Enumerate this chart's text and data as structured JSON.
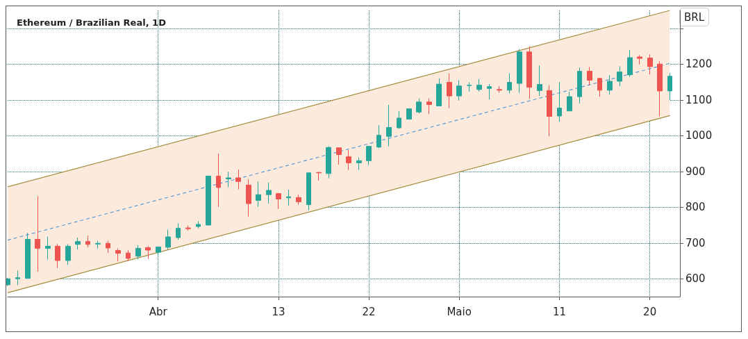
{
  "chart_data": {
    "type": "candlestick",
    "title": "Ethereum / Brazilian Real, 1D",
    "ylabel": "BRL",
    "x": [
      "--03-17",
      "--03-18",
      "--03-19",
      "--03-20",
      "--03-21",
      "--03-22",
      "--03-23",
      "--03-24",
      "--03-25",
      "--03-26",
      "--03-27",
      "--03-28",
      "--03-29",
      "--03-30",
      "--03-31",
      "--04-01",
      "--04-02",
      "--04-03",
      "--04-04",
      "--04-05",
      "--04-06",
      "--04-07",
      "--04-08",
      "--04-09",
      "--04-10",
      "--04-11",
      "--04-12",
      "--04-13",
      "--04-14",
      "--04-15",
      "--04-16",
      "--04-17",
      "--04-18",
      "--04-19",
      "--04-20",
      "--04-21",
      "--04-22",
      "--04-23",
      "--04-24",
      "--04-25",
      "--04-26",
      "--04-27",
      "--04-28",
      "--04-29",
      "--04-30",
      "--05-01",
      "--05-02",
      "--05-03",
      "--05-04",
      "--05-05",
      "--05-06",
      "--05-07",
      "--05-08",
      "--05-09",
      "--05-10",
      "--05-11",
      "--05-12",
      "--05-13",
      "--05-14",
      "--05-15",
      "--05-16",
      "--05-17",
      "--05-18",
      "--05-19",
      "--05-20",
      "--05-21",
      "--05-22"
    ],
    "ohlc": [
      [
        583,
        602,
        580,
        600
      ],
      [
        600,
        623,
        582,
        603
      ],
      [
        601,
        728,
        600,
        710
      ],
      [
        710,
        831,
        620,
        685
      ],
      [
        685,
        718,
        654,
        691
      ],
      [
        691,
        697,
        630,
        651
      ],
      [
        651,
        697,
        639,
        691
      ],
      [
        696,
        715,
        682,
        704
      ],
      [
        704,
        721,
        688,
        696
      ],
      [
        697,
        706,
        685,
        699
      ],
      [
        699,
        706,
        672,
        686
      ],
      [
        679,
        685,
        648,
        671
      ],
      [
        672,
        680,
        649,
        657
      ],
      [
        663,
        694,
        654,
        685
      ],
      [
        687,
        691,
        655,
        680
      ],
      [
        674,
        690,
        666,
        689
      ],
      [
        688,
        737,
        682,
        717
      ],
      [
        715,
        755,
        709,
        741
      ],
      [
        742,
        749,
        734,
        740
      ],
      [
        746,
        761,
        741,
        752
      ],
      [
        750,
        888,
        749,
        887
      ],
      [
        887,
        950,
        801,
        855
      ],
      [
        879,
        899,
        856,
        882
      ],
      [
        882,
        905,
        850,
        872
      ],
      [
        862,
        878,
        774,
        810
      ],
      [
        819,
        872,
        801,
        835
      ],
      [
        835,
        869,
        810,
        847
      ],
      [
        838,
        840,
        795,
        823
      ],
      [
        826,
        849,
        804,
        829
      ],
      [
        827,
        835,
        807,
        815
      ],
      [
        807,
        896,
        792,
        896
      ],
      [
        897,
        899,
        875,
        896
      ],
      [
        894,
        970,
        881,
        967
      ],
      [
        966,
        967,
        919,
        947
      ],
      [
        941,
        960,
        904,
        924
      ],
      [
        924,
        939,
        904,
        930
      ],
      [
        930,
        970,
        918,
        970
      ],
      [
        968,
        1029,
        965,
        1001
      ],
      [
        998,
        1086,
        970,
        1023
      ],
      [
        1022,
        1069,
        1019,
        1049
      ],
      [
        1046,
        1075,
        1045,
        1075
      ],
      [
        1066,
        1104,
        1062,
        1094
      ],
      [
        1094,
        1104,
        1060,
        1087
      ],
      [
        1083,
        1160,
        1083,
        1144
      ],
      [
        1149,
        1174,
        1077,
        1111
      ],
      [
        1111,
        1155,
        1098,
        1139
      ],
      [
        1140,
        1149,
        1123,
        1141
      ],
      [
        1129,
        1158,
        1123,
        1141
      ],
      [
        1132,
        1144,
        1101,
        1137
      ],
      [
        1129,
        1138,
        1120,
        1127
      ],
      [
        1127,
        1174,
        1118,
        1149
      ],
      [
        1146,
        1242,
        1120,
        1234
      ],
      [
        1234,
        1250,
        1103,
        1135
      ],
      [
        1126,
        1196,
        1111,
        1143
      ],
      [
        1126,
        1141,
        998,
        1054
      ],
      [
        1055,
        1150,
        1039,
        1077
      ],
      [
        1069,
        1123,
        1069,
        1109
      ],
      [
        1109,
        1190,
        1090,
        1180
      ],
      [
        1180,
        1192,
        1141,
        1155
      ],
      [
        1160,
        1161,
        1109,
        1127
      ],
      [
        1127,
        1169,
        1115,
        1152
      ],
      [
        1152,
        1194,
        1138,
        1178
      ],
      [
        1170,
        1239,
        1164,
        1218
      ],
      [
        1220,
        1225,
        1199,
        1216
      ],
      [
        1217,
        1227,
        1171,
        1193
      ],
      [
        1200,
        1208,
        1054,
        1125
      ],
      [
        1125,
        1175,
        1100,
        1166
      ]
    ],
    "series": [
      {
        "type": "line",
        "x": [
          "--03-17",
          "--05-22"
        ],
        "values": [
          857,
          1350
        ],
        "color": "#a48b3c"
      },
      {
        "type": "line",
        "x": [
          "--03-17",
          "--05-22"
        ],
        "values": [
          561,
          1056
        ],
        "color": "#a48b3c"
      },
      {
        "type": "line",
        "x": [
          "--03-17",
          "--05-22"
        ],
        "values": [
          708,
          1202
        ],
        "lower": [
          561,
          1056
        ],
        "upper": [
          857,
          1350
        ],
        "line_style": "dashed",
        "color": "#5b9bd5"
      }
    ],
    "xlim": [
      "--03-17",
      "--05-23"
    ],
    "xticks": [
      {
        "value": "--04-01",
        "label": "Abr"
      },
      {
        "value": "--04-13",
        "label": "13"
      },
      {
        "value": "--04-22",
        "label": "22"
      },
      {
        "value": "--05-01",
        "label": "Maio"
      },
      {
        "value": "--05-11",
        "label": "11"
      },
      {
        "value": "--05-20",
        "label": "20"
      }
    ],
    "ylim": [
      550,
      1350
    ],
    "yticks": [
      600,
      700,
      800,
      900,
      1000,
      1100,
      1200,
      {
        "value": 1300,
        "label": null
      }
    ],
    "grid": true
  }
}
